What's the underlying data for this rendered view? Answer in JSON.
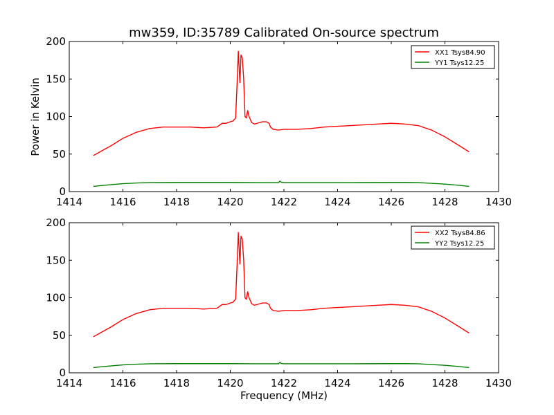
{
  "figure": {
    "title": "mw359, ID:35789 Calibrated On-source spectrum",
    "ylabel": "Power in Kelvin",
    "xlabel": "Frequency (MHz)"
  },
  "colors": {
    "xx": "#ff0000",
    "yy": "#008000",
    "axes": "#000000",
    "background": "#ffffff"
  },
  "chart_data": [
    {
      "type": "line",
      "title": "mw359, ID:35789 Calibrated On-source spectrum",
      "xlabel": "",
      "ylabel": "Power in Kelvin",
      "xlim": [
        1414,
        1430
      ],
      "ylim": [
        0,
        200
      ],
      "xticks": [
        "1414",
        "1416",
        "1418",
        "1420",
        "1422",
        "1424",
        "1426",
        "1428",
        "1430"
      ],
      "yticks": [
        "0",
        "50",
        "100",
        "150",
        "200"
      ],
      "legend_position": "top-right",
      "series": [
        {
          "name": "XX1 Tsys84.90",
          "color": "#ff0000",
          "x": [
            1414.9,
            1415.2,
            1415.6,
            1416.0,
            1416.5,
            1417.0,
            1417.5,
            1418.0,
            1418.5,
            1419.0,
            1419.5,
            1419.7,
            1419.85,
            1420.0,
            1420.1,
            1420.2,
            1420.25,
            1420.3,
            1420.33,
            1420.36,
            1420.4,
            1420.45,
            1420.5,
            1420.55,
            1420.6,
            1420.65,
            1420.7,
            1420.8,
            1420.9,
            1421.0,
            1421.2,
            1421.35,
            1421.45,
            1421.5,
            1421.6,
            1421.8,
            1422.0,
            1422.5,
            1423.0,
            1423.5,
            1424.0,
            1424.5,
            1425.0,
            1425.5,
            1426.0,
            1426.5,
            1427.0,
            1427.5,
            1428.0,
            1428.5,
            1428.9
          ],
          "y": [
            48,
            54,
            62,
            71,
            79,
            84,
            86,
            86,
            86,
            85,
            86,
            91,
            91,
            93,
            94,
            98,
            140,
            187,
            165,
            145,
            182,
            178,
            150,
            100,
            98,
            108,
            100,
            92,
            90,
            91,
            93,
            93,
            91,
            86,
            83,
            82,
            83,
            83,
            84,
            86,
            87,
            88,
            89,
            90,
            91,
            90,
            88,
            82,
            73,
            62,
            53
          ]
        },
        {
          "name": "YY1 Tsys12.25",
          "color": "#008000",
          "x": [
            1414.9,
            1415.5,
            1416.0,
            1416.5,
            1417.0,
            1418.0,
            1419.0,
            1420.0,
            1421.0,
            1421.8,
            1421.85,
            1421.9,
            1422.0,
            1423.0,
            1424.0,
            1425.0,
            1426.0,
            1426.5,
            1427.0,
            1427.5,
            1428.0,
            1428.5,
            1428.9
          ],
          "y": [
            7,
            9,
            10.5,
            11.5,
            12,
            12.2,
            12.2,
            12.2,
            12,
            12,
            14,
            12.5,
            12,
            12,
            12,
            12.1,
            12.2,
            12.2,
            12,
            11,
            10,
            8.5,
            7
          ]
        }
      ]
    },
    {
      "type": "line",
      "title": "",
      "xlabel": "Frequency (MHz)",
      "ylabel": "",
      "xlim": [
        1414,
        1430
      ],
      "ylim": [
        0,
        200
      ],
      "xticks": [
        "1414",
        "1416",
        "1418",
        "1420",
        "1422",
        "1424",
        "1426",
        "1428",
        "1430"
      ],
      "yticks": [
        "0",
        "50",
        "100",
        "150",
        "200"
      ],
      "legend_position": "top-right",
      "series": [
        {
          "name": "XX2 Tsys84.86",
          "color": "#ff0000",
          "x": [
            1414.9,
            1415.2,
            1415.6,
            1416.0,
            1416.5,
            1417.0,
            1417.5,
            1418.0,
            1418.5,
            1419.0,
            1419.5,
            1419.7,
            1419.85,
            1420.0,
            1420.1,
            1420.2,
            1420.25,
            1420.3,
            1420.33,
            1420.36,
            1420.4,
            1420.45,
            1420.5,
            1420.55,
            1420.6,
            1420.65,
            1420.7,
            1420.8,
            1420.9,
            1421.0,
            1421.2,
            1421.35,
            1421.45,
            1421.5,
            1421.6,
            1421.8,
            1422.0,
            1422.5,
            1423.0,
            1423.5,
            1424.0,
            1424.5,
            1425.0,
            1425.5,
            1426.0,
            1426.5,
            1427.0,
            1427.5,
            1428.0,
            1428.5,
            1428.9
          ],
          "y": [
            48,
            54,
            62,
            71,
            79,
            84,
            86,
            86,
            86,
            85,
            86,
            91,
            91,
            93,
            94,
            98,
            140,
            187,
            165,
            145,
            182,
            178,
            150,
            100,
            98,
            108,
            100,
            92,
            90,
            91,
            93,
            93,
            91,
            86,
            83,
            82,
            83,
            83,
            84,
            86,
            87,
            88,
            89,
            90,
            91,
            90,
            88,
            82,
            73,
            62,
            53
          ]
        },
        {
          "name": "YY2 Tsys12.25",
          "color": "#008000",
          "x": [
            1414.9,
            1415.5,
            1416.0,
            1416.5,
            1417.0,
            1418.0,
            1419.0,
            1420.0,
            1421.0,
            1421.8,
            1421.85,
            1421.9,
            1422.0,
            1423.0,
            1424.0,
            1425.0,
            1426.0,
            1426.5,
            1427.0,
            1427.5,
            1428.0,
            1428.5,
            1428.9
          ],
          "y": [
            7,
            9,
            10.5,
            11.5,
            12,
            12.2,
            12.2,
            12.2,
            12,
            12,
            14,
            12.5,
            12,
            12,
            12,
            12.1,
            12.2,
            12.2,
            12,
            11,
            10,
            8.5,
            7
          ]
        }
      ]
    }
  ]
}
